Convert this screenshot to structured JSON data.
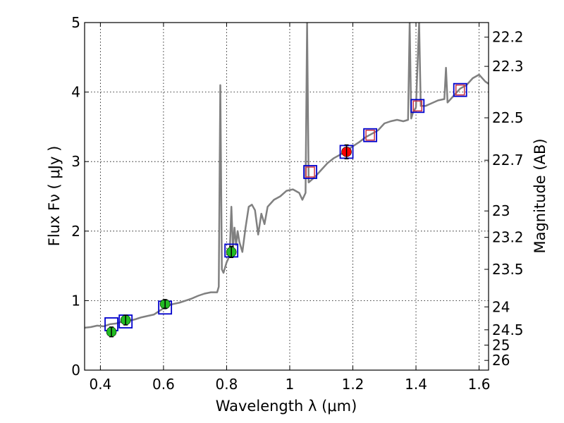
{
  "chart_data": {
    "type": "line",
    "xlabel": "Wavelength  λ (μm)",
    "ylabel": "Flux  Fν  ( μJy )",
    "y2label": "Magnitude (AB)",
    "xlim": [
      0.35,
      1.63
    ],
    "ylim": [
      0,
      5
    ],
    "grid": true,
    "x_ticks": [
      "0.4",
      "0.6",
      "0.8",
      "1",
      "1.2",
      "1.4",
      "1.6"
    ],
    "y_ticks": [
      "0",
      "1",
      "2",
      "3",
      "4",
      "5"
    ],
    "y2_ticks": [
      {
        "label": "22.2",
        "flux": 4.79
      },
      {
        "label": "22.3",
        "flux": 4.37
      },
      {
        "label": "22.5",
        "flux": 3.63
      },
      {
        "label": "22.7",
        "flux": 3.02
      },
      {
        "label": "23",
        "flux": 2.29
      },
      {
        "label": "23.2",
        "flux": 1.91
      },
      {
        "label": "23.5",
        "flux": 1.45
      },
      {
        "label": "24",
        "flux": 0.91
      },
      {
        "label": "24.5",
        "flux": 0.58
      },
      {
        "label": "25",
        "flux": 0.36
      },
      {
        "label": "26",
        "flux": 0.14
      }
    ],
    "colors": {
      "spectrum": "#808080",
      "model_box": "#0000cc",
      "hst_point": "#22bb22",
      "ir_point": "#ff0000",
      "ir_box": "#cc3344"
    },
    "series": [
      {
        "kind": "model_spectrum",
        "points": [
          [
            0.35,
            0.61
          ],
          [
            0.37,
            0.62
          ],
          [
            0.39,
            0.64
          ],
          [
            0.41,
            0.63
          ],
          [
            0.43,
            0.66
          ],
          [
            0.45,
            0.67
          ],
          [
            0.47,
            0.7
          ],
          [
            0.49,
            0.71
          ],
          [
            0.51,
            0.73
          ],
          [
            0.53,
            0.76
          ],
          [
            0.55,
            0.78
          ],
          [
            0.57,
            0.8
          ],
          [
            0.59,
            0.86
          ],
          [
            0.61,
            0.92
          ],
          [
            0.63,
            0.95
          ],
          [
            0.65,
            0.97
          ],
          [
            0.67,
            1.0
          ],
          [
            0.69,
            1.03
          ],
          [
            0.71,
            1.07
          ],
          [
            0.73,
            1.1
          ],
          [
            0.75,
            1.12
          ],
          [
            0.77,
            1.12
          ],
          [
            0.775,
            1.2
          ],
          [
            0.78,
            4.1
          ],
          [
            0.785,
            1.45
          ],
          [
            0.79,
            1.4
          ],
          [
            0.8,
            1.55
          ],
          [
            0.805,
            1.6
          ],
          [
            0.81,
            1.7
          ],
          [
            0.815,
            2.35
          ],
          [
            0.82,
            1.75
          ],
          [
            0.825,
            2.05
          ],
          [
            0.83,
            1.8
          ],
          [
            0.835,
            2.0
          ],
          [
            0.84,
            1.85
          ],
          [
            0.85,
            1.7
          ],
          [
            0.86,
            2.05
          ],
          [
            0.87,
            2.35
          ],
          [
            0.88,
            2.38
          ],
          [
            0.89,
            2.3
          ],
          [
            0.9,
            1.95
          ],
          [
            0.91,
            2.25
          ],
          [
            0.92,
            2.1
          ],
          [
            0.93,
            2.35
          ],
          [
            0.95,
            2.45
          ],
          [
            0.97,
            2.5
          ],
          [
            0.99,
            2.58
          ],
          [
            1.01,
            2.6
          ],
          [
            1.03,
            2.55
          ],
          [
            1.04,
            2.45
          ],
          [
            1.05,
            2.55
          ],
          [
            1.055,
            5.0
          ],
          [
            1.06,
            2.7
          ],
          [
            1.08,
            2.78
          ],
          [
            1.1,
            2.88
          ],
          [
            1.12,
            2.98
          ],
          [
            1.14,
            3.05
          ],
          [
            1.16,
            3.1
          ],
          [
            1.18,
            3.16
          ],
          [
            1.2,
            3.22
          ],
          [
            1.22,
            3.28
          ],
          [
            1.24,
            3.35
          ],
          [
            1.26,
            3.4
          ],
          [
            1.28,
            3.45
          ],
          [
            1.3,
            3.55
          ],
          [
            1.32,
            3.58
          ],
          [
            1.34,
            3.6
          ],
          [
            1.36,
            3.58
          ],
          [
            1.375,
            3.6
          ],
          [
            1.38,
            5.0
          ],
          [
            1.385,
            3.62
          ],
          [
            1.39,
            3.7
          ],
          [
            1.4,
            3.78
          ],
          [
            1.41,
            5.0
          ],
          [
            1.415,
            3.8
          ],
          [
            1.43,
            3.8
          ],
          [
            1.45,
            3.84
          ],
          [
            1.47,
            3.88
          ],
          [
            1.49,
            3.9
          ],
          [
            1.495,
            4.35
          ],
          [
            1.5,
            3.85
          ],
          [
            1.52,
            3.95
          ],
          [
            1.54,
            4.05
          ],
          [
            1.56,
            4.1
          ],
          [
            1.58,
            4.2
          ],
          [
            1.6,
            4.25
          ],
          [
            1.62,
            4.15
          ],
          [
            1.63,
            4.12
          ]
        ]
      },
      {
        "kind": "model_photometry",
        "points": [
          [
            0.435,
            0.66
          ],
          [
            0.48,
            0.7
          ],
          [
            0.605,
            0.9
          ],
          [
            0.815,
            1.72
          ],
          [
            1.065,
            2.85
          ],
          [
            1.18,
            3.14
          ],
          [
            1.255,
            3.38
          ],
          [
            1.405,
            3.8
          ],
          [
            1.54,
            4.03
          ]
        ]
      },
      {
        "kind": "observed_optical",
        "points": [
          [
            0.435,
            0.55,
            0.07
          ],
          [
            0.48,
            0.72,
            0.07
          ],
          [
            0.605,
            0.95,
            0.06
          ],
          [
            0.815,
            1.7,
            0.08
          ]
        ]
      },
      {
        "kind": "observed_ir",
        "points": [
          [
            1.18,
            3.14,
            0.1
          ]
        ]
      },
      {
        "kind": "observed_ir_boxes",
        "points": [
          [
            1.065,
            2.85
          ],
          [
            1.255,
            3.38
          ],
          [
            1.405,
            3.8
          ],
          [
            1.54,
            4.03
          ]
        ]
      }
    ]
  }
}
